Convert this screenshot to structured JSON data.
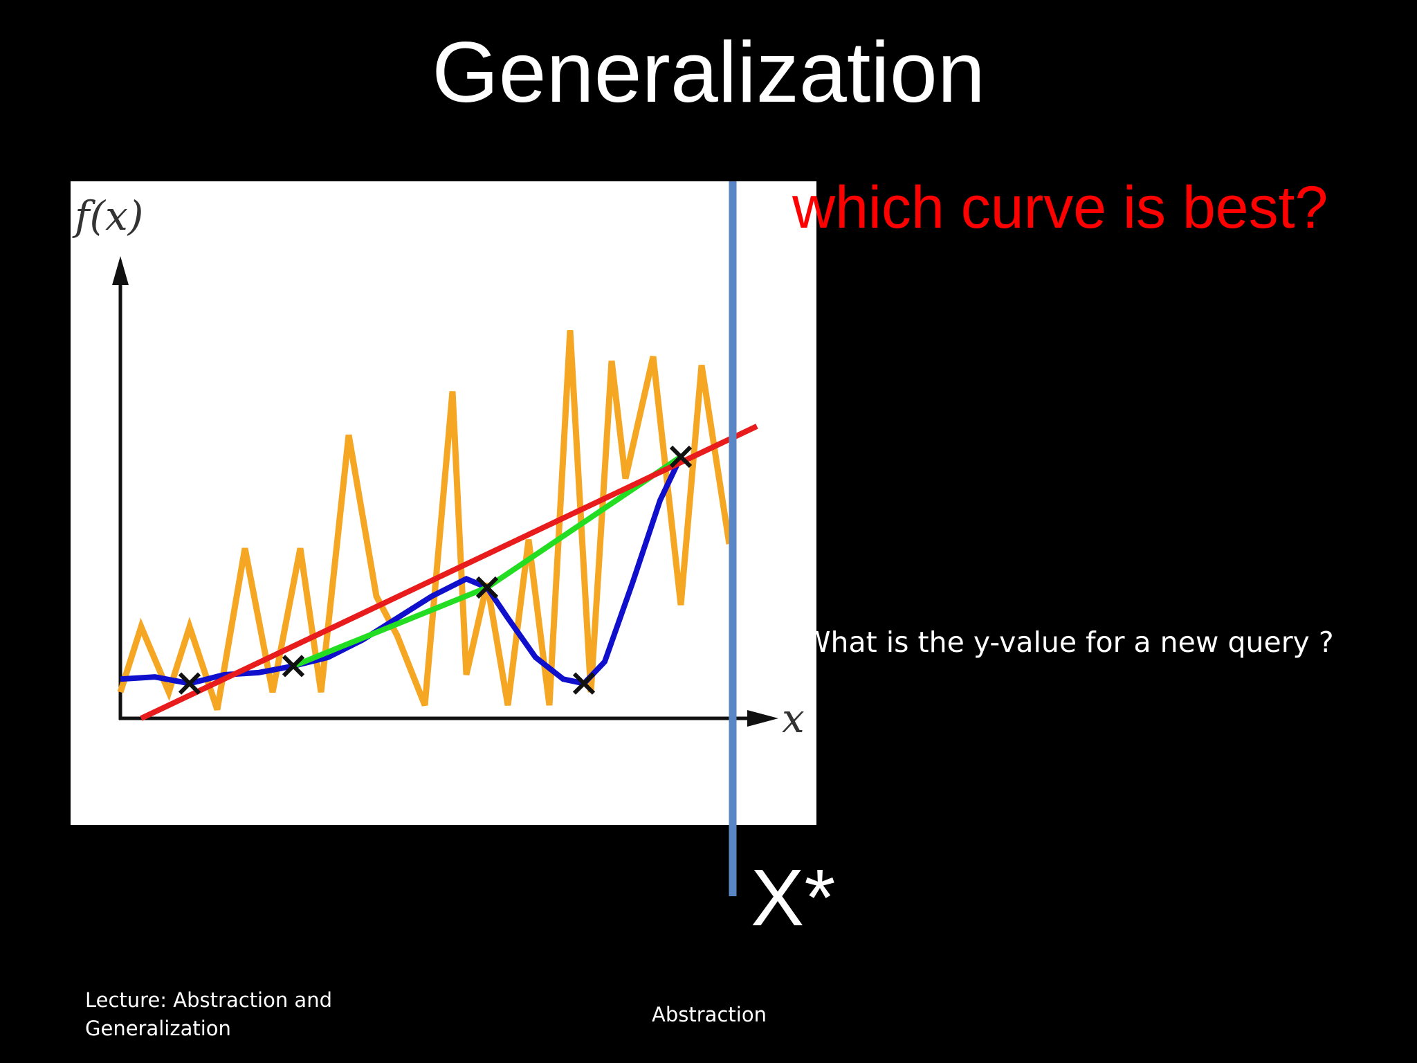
{
  "slide": {
    "title": "Generalization",
    "question": "which curve is best?",
    "query_text": "What is the y-value for a new query ?",
    "query_label": "X*",
    "footer_left": "Lecture: Abstraction and Generalization",
    "footer_center": "Abstraction"
  },
  "colors": {
    "background": "#000000",
    "question": "#ff0000",
    "overfit_curve": "#f5a623",
    "polynomial_curve": "#1010cc",
    "linear_curve": "#e81c1c",
    "piecewise_curve": "#22dd22",
    "query_line": "#5b86c5"
  },
  "chart_data": {
    "type": "line",
    "title": "",
    "ylabel": "f(x)",
    "xlabel": "x",
    "xlim": [
      0,
      10
    ],
    "ylim": [
      0,
      10
    ],
    "grid": false,
    "legend": "none",
    "points": [
      {
        "x": 1.0,
        "y": 0.8
      },
      {
        "x": 2.5,
        "y": 1.2
      },
      {
        "x": 5.3,
        "y": 3.0
      },
      {
        "x": 6.7,
        "y": 0.8
      },
      {
        "x": 8.1,
        "y": 6.0
      }
    ],
    "series": [
      {
        "color": "#f5a623",
        "x": [
          0,
          0.3,
          0.7,
          1.0,
          1.4,
          1.8,
          2.2,
          2.6,
          2.9,
          3.3,
          3.7,
          4.0,
          4.4,
          4.8,
          5.0,
          5.3,
          5.6,
          5.9,
          6.2,
          6.5,
          6.8,
          7.1,
          7.3,
          7.7,
          8.1,
          8.4,
          8.8
        ],
        "y": [
          0.6,
          2.1,
          0.6,
          2.1,
          0.2,
          3.9,
          0.6,
          3.9,
          0.6,
          6.5,
          2.8,
          1.9,
          0.3,
          7.5,
          1.0,
          3.1,
          0.3,
          4.1,
          0.3,
          8.9,
          0.6,
          8.2,
          5.5,
          8.3,
          2.6,
          8.1,
          4.0
        ]
      },
      {
        "color": "#1010cc",
        "x": [
          0,
          0.5,
          1.0,
          1.5,
          2.0,
          2.5,
          3.0,
          3.5,
          4.0,
          4.5,
          5.0,
          5.3,
          5.6,
          6.0,
          6.4,
          6.7,
          7.0,
          7.4,
          7.8,
          8.1
        ],
        "y": [
          0.9,
          0.95,
          0.8,
          1.0,
          1.05,
          1.2,
          1.4,
          1.8,
          2.3,
          2.8,
          3.2,
          3.0,
          2.3,
          1.4,
          0.9,
          0.8,
          1.3,
          3.1,
          5.0,
          6.0
        ]
      },
      {
        "color": "#22dd22",
        "x": [
          2.5,
          5.3,
          8.1
        ],
        "y": [
          1.2,
          3.0,
          6.0
        ]
      },
      {
        "color": "#e81c1c",
        "x": [
          0.3,
          9.2
        ],
        "y": [
          0.0,
          6.7
        ]
      }
    ]
  }
}
